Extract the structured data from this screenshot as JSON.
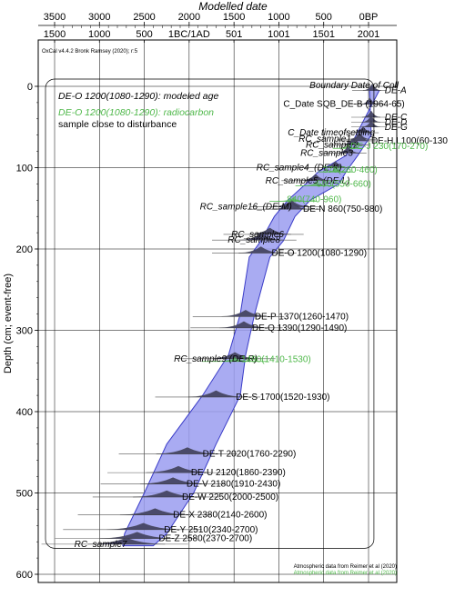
{
  "chart_data": {
    "type": "area",
    "title": "",
    "x_top": {
      "label": "Modelled date",
      "ticks_bp": [
        "3500",
        "3000",
        "2500",
        "2000",
        "1500",
        "1000",
        "500",
        "0BP"
      ],
      "ticks_ad": [
        "1500",
        "1000",
        "500",
        "1BC/1AD",
        "501",
        "1001",
        "1501",
        "2001"
      ],
      "range_bp": [
        3500,
        0
      ]
    },
    "y": {
      "label": "Depth (cm; event-free)",
      "ticks": [
        0,
        100,
        200,
        300,
        400,
        500,
        600
      ],
      "range": [
        -12,
        630
      ]
    },
    "software_label": "OxCal v4.4.2 Bronk Ramsey (2020); r:5",
    "boundary_label": "Boundary Date of Coll",
    "legend": {
      "black_text": "DE-O 1200(1080-1290): modeled age",
      "green_line1": "DE-O 1200(1080-1290): radiocarbon",
      "green_line2": "sample close to disturbance",
      "black_color": "#000000",
      "green_color": "#4fb84a"
    },
    "envelope": [
      {
        "depth": 5,
        "left": -120,
        "right": -10
      },
      {
        "depth": 60,
        "left": 140,
        "right": -30
      },
      {
        "depth": 85,
        "left": 250,
        "right": 120
      },
      {
        "depth": 105,
        "left": 560,
        "right": 250
      },
      {
        "depth": 120,
        "left": 700,
        "right": 330
      },
      {
        "depth": 140,
        "left": 900,
        "right": 650
      },
      {
        "depth": 160,
        "left": 1050,
        "right": 820
      },
      {
        "depth": 190,
        "left": 1200,
        "right": 950
      },
      {
        "depth": 210,
        "left": 1330,
        "right": 1100
      },
      {
        "depth": 280,
        "left": 1430,
        "right": 1270
      },
      {
        "depth": 330,
        "left": 1560,
        "right": 1370
      },
      {
        "depth": 380,
        "left": 1850,
        "right": 1430
      },
      {
        "depth": 440,
        "left": 2250,
        "right": 1700
      },
      {
        "depth": 500,
        "left": 2500,
        "right": 1950
      },
      {
        "depth": 550,
        "left": 2720,
        "right": 2250
      },
      {
        "depth": 565,
        "left": 2740,
        "right": 2400
      }
    ],
    "series": [
      {
        "label": "DE-A",
        "depth": 5,
        "mean_bp": -40,
        "color": "black",
        "label_x": -180
      },
      {
        "label": "C_Date SQB_DE-B (1964-65)",
        "depth": 22,
        "mean_bp": -14,
        "color": "black",
        "label_x": 950
      },
      {
        "label": "DE-C",
        "depth": 38,
        "mean_bp": -30,
        "color": "black",
        "label_x": -180
      },
      {
        "label": "DE-D",
        "depth": 44,
        "mean_bp": -30,
        "color": "black",
        "label_x": -180
      },
      {
        "label": "DE-G",
        "depth": 50,
        "mean_bp": -30,
        "color": "black",
        "label_x": -180
      },
      {
        "label": "C_Date timeofsettling",
        "depth": 57,
        "mean_bp": 60,
        "color": "black",
        "label_x": 900
      },
      {
        "label": "RC_sample1",
        "depth": 65,
        "mean_bp": 100,
        "color": "black",
        "label_x": 780
      },
      {
        "label": "DE-H,I 100(60-130",
        "depth": 67,
        "mean_bp": 100,
        "color": "black",
        "label_x": -30
      },
      {
        "label": "RC_sample2",
        "depth": 72,
        "mean_bp": 180,
        "color": "black",
        "label_x": 700
      },
      {
        "label": "DE-J 230(170-270)",
        "depth": 74,
        "mean_bp": 230,
        "color": "green",
        "label_x": 200
      },
      {
        "label": "RC_sample3",
        "depth": 82,
        "mean_bp": 230,
        "color": "black",
        "label_x": 760
      },
      {
        "label": "RC_sample4_(DE-K)",
        "depth": 100,
        "mean_bp": 370,
        "color": "black",
        "label_x": 1250
      },
      {
        "label": "370(260-460)",
        "depth": 103,
        "mean_bp": 370,
        "color": "green",
        "label_x": 510
      },
      {
        "label": "RC_sample5_(DE-L)",
        "depth": 116,
        "mean_bp": 590,
        "color": "black",
        "label_x": 1150
      },
      {
        "label": "590(550-660)",
        "depth": 120,
        "mean_bp": 590,
        "color": "green",
        "label_x": 580
      },
      {
        "label": "840(740-960)",
        "depth": 139,
        "mean_bp": 840,
        "color": "green",
        "label_x": 910
      },
      {
        "label": "RC_sample16_(DE-M)",
        "depth": 148,
        "mean_bp": 860,
        "color": "black",
        "label_x": 1880
      },
      {
        "label": "DE-N 860(750-980)",
        "depth": 151,
        "mean_bp": 860,
        "color": "black",
        "label_x": 730
      },
      {
        "label": "RC_sample6",
        "depth": 182,
        "mean_bp": 1100,
        "color": "black",
        "label_x": 1530
      },
      {
        "label": "RC_sample8",
        "depth": 189,
        "mean_bp": 1200,
        "color": "black",
        "label_x": 1570
      },
      {
        "label": "DE-O 1200(1080-1290)",
        "depth": 205,
        "mean_bp": 1200,
        "color": "black",
        "label_x": 1080
      },
      {
        "label": "DE-P 1370(1260-1470)",
        "depth": 283,
        "mean_bp": 1370,
        "color": "black",
        "label_x": 1270
      },
      {
        "label": "DE-Q 1390(1290-1490)",
        "depth": 297,
        "mean_bp": 1390,
        "color": "black",
        "label_x": 1300
      },
      {
        "label": "RC_sample9 (DE-R)",
        "depth": 335,
        "mean_bp": 1490,
        "color": "black",
        "label_x": 2170
      },
      {
        "label": "1490(1410-1530)",
        "depth": 336,
        "mean_bp": 1490,
        "color": "green",
        "label_x": 1420
      },
      {
        "label": "DE-S 1700(1520-1930)",
        "depth": 382,
        "mean_bp": 1700,
        "color": "black",
        "label_x": 1480
      },
      {
        "label": "DE-T 2020(1760-2290)",
        "depth": 452,
        "mean_bp": 2020,
        "color": "black",
        "label_x": 1850
      },
      {
        "label": "DE-U 2120(1860-2390)",
        "depth": 475,
        "mean_bp": 2120,
        "color": "black",
        "label_x": 1980
      },
      {
        "label": "DE-V 2180(1910-2430)",
        "depth": 489,
        "mean_bp": 2180,
        "color": "black",
        "label_x": 2030
      },
      {
        "label": "DE-W 2250(2000-2500)",
        "depth": 505,
        "mean_bp": 2250,
        "color": "black",
        "label_x": 2080
      },
      {
        "label": "DE-X 2380(2140-2600)",
        "depth": 527,
        "mean_bp": 2380,
        "color": "black",
        "label_x": 2180
      },
      {
        "label": "DE-Y 2510(2340-2700)",
        "depth": 545,
        "mean_bp": 2510,
        "color": "black",
        "label_x": 2280
      },
      {
        "label": "DE-Z 2580(2370-2700)",
        "depth": 556,
        "mean_bp": 2580,
        "color": "black",
        "label_x": 2340
      },
      {
        "label": "RC_sample7",
        "depth": 563,
        "mean_bp": 2700,
        "color": "black",
        "label_x": 3280
      }
    ],
    "footer_black": "Atmospheric data from Reimer et al (2020)",
    "footer_green": "Atmospheric data from Reimer et al (2020)"
  }
}
